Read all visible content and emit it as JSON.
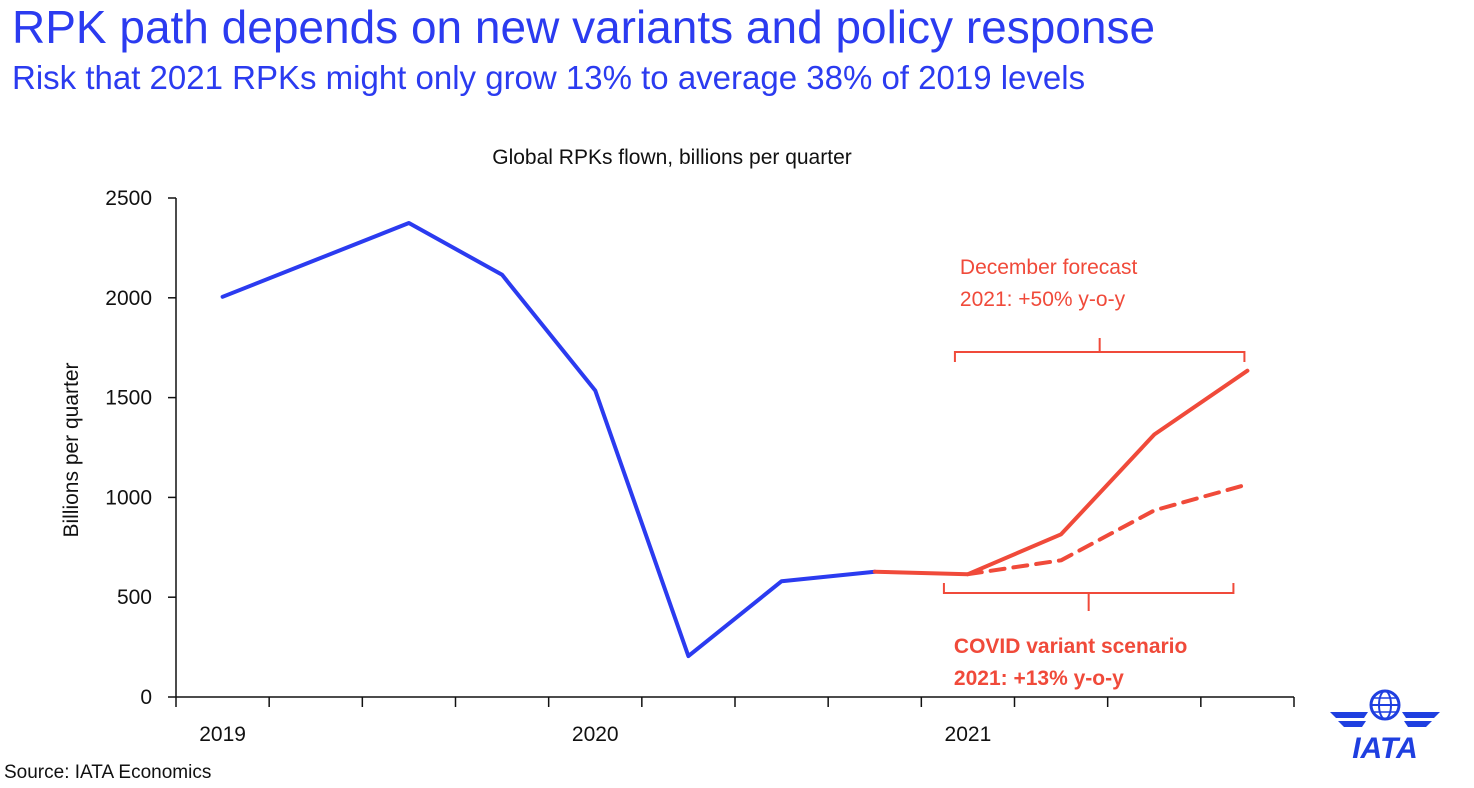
{
  "headline": "RPK path depends on new variants and policy response",
  "subheadline": "Risk that 2021 RPKs might only grow 13% to average 38% of 2019 levels",
  "source": "Source: IATA Economics",
  "logo_text": "IATA",
  "logo_icon": "globe-wings-icon",
  "colors": {
    "blue": "#2b3bf0",
    "red": "#f04a3a"
  },
  "chart_data": {
    "type": "line",
    "title": "Global RPKs flown, billions per quarter",
    "xlabel": "",
    "ylabel": "Billions per quarter",
    "ylim": [
      0,
      2500
    ],
    "yticks": [
      0,
      500,
      1000,
      1500,
      2000,
      2500
    ],
    "year_labels": [
      "2019",
      "2020",
      "2021"
    ],
    "x": [
      "2019Q1",
      "2019Q2",
      "2019Q3",
      "2019Q4",
      "2020Q1",
      "2020Q2",
      "2020Q3",
      "2020Q4",
      "2021Q1",
      "2021Q2",
      "2021Q3",
      "2021Q4"
    ],
    "series": [
      {
        "style": "solid-blue",
        "values": [
          2005,
          2190,
          2375,
          2115,
          1535,
          205,
          580,
          628,
          null,
          null,
          null,
          null
        ]
      },
      {
        "style": "solid-red",
        "values": [
          null,
          null,
          null,
          null,
          null,
          null,
          null,
          628,
          615,
          815,
          1315,
          1635
        ]
      },
      {
        "style": "dashed-red",
        "values": [
          null,
          null,
          null,
          null,
          null,
          null,
          null,
          null,
          615,
          685,
          935,
          1065
        ]
      }
    ],
    "annotations": [
      {
        "lines": [
          "December forecast",
          "2021: +50% y-o-y"
        ],
        "style": "red"
      },
      {
        "lines": [
          "COVID variant scenario",
          "2021: +13% y-o-y"
        ],
        "style": "red-bold"
      }
    ],
    "grid": false,
    "legend": "none"
  }
}
